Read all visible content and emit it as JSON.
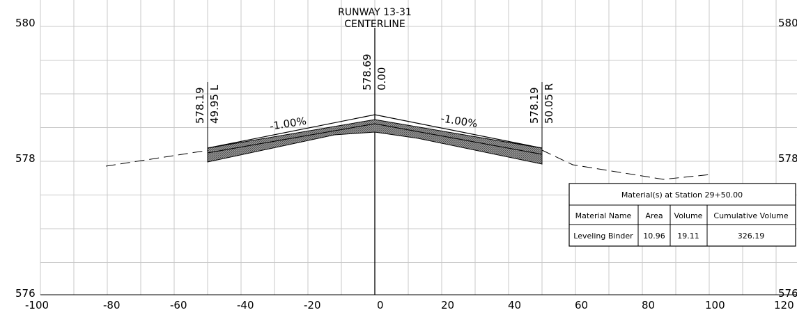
{
  "drawing": {
    "centerline_title_1": "RUNWAY 13-31",
    "centerline_title_2": "CENTERLINE",
    "left_elev": "578.19",
    "left_offset": "49.95 L",
    "center_elev": "578.69",
    "center_offset": "0.00",
    "right_elev": "578.19",
    "right_offset": "50.05 R",
    "left_slope": "-1.00%",
    "right_slope": "-1.00%",
    "y_labels_left": [
      "580",
      "578",
      "576"
    ],
    "y_labels_right": [
      "580",
      "578",
      "576"
    ],
    "x_labels": [
      "-100",
      "-80",
      "-60",
      "-40",
      "-20",
      "0",
      "20",
      "40",
      "60",
      "80",
      "100",
      "120"
    ]
  },
  "table": {
    "title": "Material(s) at Station 29+50.00",
    "headers": [
      "Material Name",
      "Area",
      "Volume",
      "Cumulative Volume"
    ],
    "row": [
      "Leveling Binder",
      "10.96",
      "19.11",
      "326.19"
    ]
  },
  "colors": {
    "grid": "#c8c8c8",
    "ink": "#000000",
    "hatch": "#8a8a8a"
  }
}
